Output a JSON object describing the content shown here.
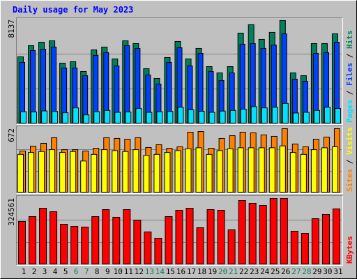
{
  "chart_data": [
    {
      "type": "bar",
      "title": "Daily usage for May 2023",
      "legend_separator": " / ",
      "ylim": [
        0,
        8137
      ],
      "yticks": [
        8137
      ],
      "series": [
        {
          "name": "Hits",
          "color": "#00805c",
          "values": [
            5225,
            6105,
            6380,
            6490,
            4730,
            4840,
            4070,
            5775,
            5995,
            5060,
            6490,
            6270,
            4290,
            3520,
            5170,
            6435,
            5060,
            5885,
            4455,
            3960,
            4455,
            7095,
            7755,
            6600,
            7150,
            8085,
            3960,
            3740,
            6270,
            6270,
            7040
          ]
        },
        {
          "name": "Files",
          "color": "#0040ff",
          "values": [
            4785,
            5720,
            5830,
            5995,
            4345,
            4345,
            3740,
            5335,
            5555,
            4510,
            6105,
            5885,
            3795,
            3080,
            4785,
            5940,
            4510,
            5500,
            4070,
            3355,
            3960,
            6215,
            6270,
            5885,
            6160,
            7040,
            3465,
            3300,
            5500,
            5555,
            6380
          ]
        },
        {
          "name": "Pages",
          "color": "#00e0ff",
          "values": [
            900,
            880,
            960,
            920,
            820,
            1200,
            650,
            900,
            1000,
            850,
            880,
            1150,
            850,
            900,
            920,
            1250,
            1050,
            930,
            850,
            950,
            1000,
            1100,
            1300,
            1200,
            1250,
            1550,
            800,
            850,
            1000,
            1250,
            1150
          ]
        }
      ]
    },
    {
      "type": "bar",
      "legend_separator": " / ",
      "ylim": [
        0,
        672
      ],
      "yticks": [
        672
      ],
      "series": [
        {
          "name": "Visits",
          "color": "#ffff00",
          "values": [
            400,
            420,
            430,
            450,
            420,
            430,
            330,
            400,
            450,
            440,
            430,
            450,
            390,
            400,
            420,
            440,
            460,
            470,
            400,
            440,
            460,
            470,
            470,
            470,
            470,
            490,
            420,
            400,
            450,
            470,
            480
          ]
        },
        {
          "name": "Sites",
          "color": "#ff8000",
          "values": [
            436,
            487,
            517,
            576,
            450,
            450,
            436,
            465,
            576,
            569,
            561,
            576,
            473,
            502,
            465,
            480,
            635,
            642,
            465,
            569,
            598,
            635,
            628,
            606,
            591,
            672,
            510,
            480,
            561,
            583,
            672
          ]
        }
      ]
    },
    {
      "type": "bar",
      "ylim": [
        0,
        324561
      ],
      "yticks": [
        324561
      ],
      "categories": [
        "1",
        "2",
        "3",
        "4",
        "5",
        "6",
        "7",
        "8",
        "9",
        "10",
        "11",
        "12",
        "13",
        "14",
        "15",
        "16",
        "17",
        "18",
        "19",
        "20",
        "21",
        "22",
        "23",
        "24",
        "25",
        "26",
        "27",
        "28",
        "29",
        "30",
        "31"
      ],
      "category_colors": [
        "#000000",
        "#000000",
        "#000000",
        "#000000",
        "#000000",
        "#00805c",
        "#00805c",
        "#000000",
        "#000000",
        "#000000",
        "#000000",
        "#000000",
        "#00805c",
        "#00805c",
        "#000000",
        "#000000",
        "#000000",
        "#000000",
        "#000000",
        "#00805c",
        "#00805c",
        "#000000",
        "#000000",
        "#000000",
        "#000000",
        "#000000",
        "#00805c",
        "#00805c",
        "#000000",
        "#000000",
        "#000000"
      ],
      "series": [
        {
          "name": "KBytes",
          "color": "#ff0000",
          "values": [
            210600,
            234800,
            276200,
            259000,
            196800,
            186500,
            183000,
            234800,
            269300,
            231400,
            269300,
            217500,
            158800,
            127800,
            234800,
            265900,
            276200,
            179600,
            269300,
            265900,
            169200,
            314200,
            300400,
            290100,
            324561,
            324561,
            162300,
            151900,
            224400,
            245200,
            272800
          ]
        }
      ]
    }
  ]
}
